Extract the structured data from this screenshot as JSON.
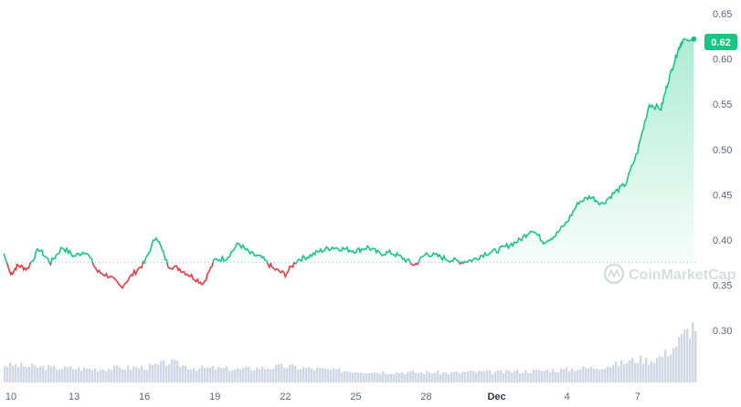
{
  "chart_data": {
    "type": "line",
    "title": "",
    "xlabel": "",
    "ylabel": "",
    "ylim": [
      0.28,
      0.65
    ],
    "y_ticks": [
      "0.65",
      "0.60",
      "0.55",
      "0.50",
      "0.45",
      "0.40",
      "0.35",
      "0.30"
    ],
    "x_ticks": [
      "10",
      "13",
      "16",
      "19",
      "22",
      "25",
      "28",
      "Dec",
      "4",
      "7"
    ],
    "baseline": 0.375,
    "last_price_label": "0.62",
    "watermark": "CoinMarketCap",
    "colors": {
      "up": "#16c784",
      "down": "#ea3943",
      "volume": "#cfd6e4",
      "badge": "#16c784"
    },
    "x_range": [
      0,
      29.5
    ],
    "series": [
      {
        "x": [
          0,
          0.3,
          0.6,
          1,
          1.5,
          2,
          2.5,
          3,
          3.5,
          4,
          4.5,
          5,
          5.5,
          6,
          6.5,
          7,
          7.5,
          8,
          8.5,
          9,
          9.5,
          10,
          10.5,
          11,
          11.5,
          12,
          12.5,
          13,
          13.5,
          14,
          14.5,
          15,
          15.5,
          16,
          16.5,
          17,
          17.5,
          18,
          18.5,
          19,
          19.5,
          20,
          20.5,
          21,
          21.5,
          22,
          22.5,
          23,
          23.5,
          24,
          24.5,
          25,
          25.5,
          26,
          26.5,
          27,
          27.5,
          28,
          28.3,
          28.6,
          28.8,
          29,
          29.2,
          29.4
        ],
        "values": [
          0.385,
          0.362,
          0.372,
          0.368,
          0.39,
          0.375,
          0.392,
          0.382,
          0.388,
          0.365,
          0.36,
          0.348,
          0.362,
          0.375,
          0.405,
          0.372,
          0.368,
          0.36,
          0.352,
          0.378,
          0.38,
          0.396,
          0.385,
          0.38,
          0.368,
          0.362,
          0.378,
          0.382,
          0.388,
          0.392,
          0.39,
          0.388,
          0.392,
          0.385,
          0.386,
          0.38,
          0.372,
          0.385,
          0.382,
          0.378,
          0.376,
          0.378,
          0.385,
          0.388,
          0.394,
          0.4,
          0.412,
          0.398,
          0.405,
          0.42,
          0.442,
          0.448,
          0.44,
          0.452,
          0.462,
          0.498,
          0.55,
          0.545,
          0.575,
          0.6,
          0.615,
          0.622,
          0.62,
          0.622
        ]
      }
    ],
    "volume": {
      "x": [
        0,
        1,
        2,
        3,
        4,
        5,
        6,
        6.5,
        7,
        7.5,
        8,
        9,
        10,
        11,
        12,
        13,
        14,
        15,
        16,
        17,
        18,
        19,
        20,
        21,
        22,
        23,
        24,
        25,
        26,
        27,
        27.5,
        28,
        28.5,
        29,
        29.4
      ],
      "values": [
        0.06,
        0.055,
        0.05,
        0.048,
        0.046,
        0.05,
        0.052,
        0.058,
        0.07,
        0.06,
        0.05,
        0.048,
        0.045,
        0.05,
        0.055,
        0.048,
        0.042,
        0.038,
        0.036,
        0.035,
        0.034,
        0.033,
        0.036,
        0.035,
        0.038,
        0.04,
        0.045,
        0.05,
        0.06,
        0.08,
        0.075,
        0.09,
        0.12,
        0.17,
        0.2
      ]
    }
  }
}
